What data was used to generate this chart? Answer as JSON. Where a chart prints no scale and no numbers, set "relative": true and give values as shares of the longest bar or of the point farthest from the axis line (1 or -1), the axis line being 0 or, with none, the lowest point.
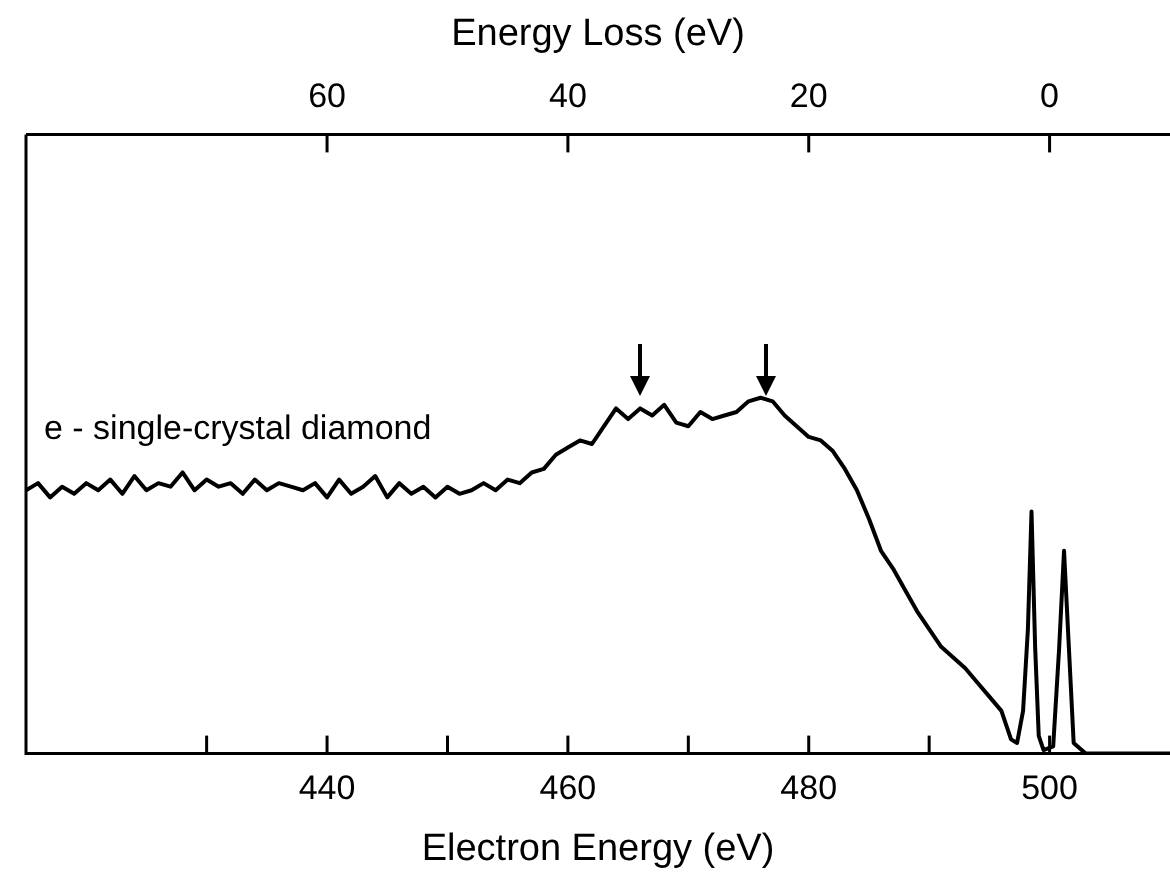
{
  "chart_data": {
    "type": "line",
    "relative": true,
    "xlabel": "Electron Energy (eV)",
    "x2label": "Energy Loss (eV)",
    "xlim": [
      415,
      510
    ],
    "xticks": [
      {
        "value": 430,
        "label": null
      },
      440,
      {
        "value": 450,
        "label": null
      },
      460,
      {
        "value": 470,
        "label": null
      },
      480,
      {
        "value": 490,
        "label": null
      },
      500
    ],
    "x2lim": [
      85,
      -10
    ],
    "x2ticks": [
      60,
      40,
      20,
      0
    ],
    "tick_labels": "x",
    "grid": false,
    "legend": false,
    "marker": "none",
    "line_style": "solid",
    "series": [
      {
        "name": "e - single-crystal diamond",
        "color": "#000000",
        "x": [
          415,
          416,
          417,
          418,
          419,
          420,
          421,
          422,
          423,
          424,
          425,
          426,
          427,
          428,
          429,
          430,
          431,
          432,
          433,
          434,
          435,
          436,
          437,
          438,
          439,
          440,
          441,
          442,
          443,
          444,
          445,
          446,
          447,
          448,
          449,
          450,
          451,
          452,
          453,
          454,
          455,
          456,
          457,
          458,
          459,
          460,
          461,
          462,
          463,
          464,
          465,
          466,
          467,
          468,
          469,
          470,
          471,
          472,
          473,
          474,
          475,
          476,
          477,
          478,
          479,
          480,
          481,
          482,
          483,
          484,
          485,
          486,
          487,
          488,
          489,
          490,
          491,
          492,
          493,
          494,
          495,
          496,
          496.8,
          497.3,
          497.8,
          498.2,
          498.5,
          498.8,
          499.1,
          499.5,
          500.3,
          500.8,
          501.2,
          501.6,
          502,
          503,
          510
        ],
        "values": [
          0.74,
          0.76,
          0.72,
          0.75,
          0.73,
          0.76,
          0.74,
          0.77,
          0.73,
          0.78,
          0.74,
          0.76,
          0.75,
          0.79,
          0.74,
          0.77,
          0.75,
          0.76,
          0.73,
          0.77,
          0.74,
          0.76,
          0.75,
          0.74,
          0.76,
          0.72,
          0.77,
          0.73,
          0.75,
          0.78,
          0.72,
          0.76,
          0.73,
          0.75,
          0.72,
          0.75,
          0.73,
          0.74,
          0.76,
          0.74,
          0.77,
          0.76,
          0.79,
          0.8,
          0.84,
          0.86,
          0.88,
          0.87,
          0.92,
          0.97,
          0.94,
          0.97,
          0.95,
          0.98,
          0.93,
          0.92,
          0.96,
          0.94,
          0.95,
          0.96,
          0.99,
          1.0,
          0.99,
          0.95,
          0.92,
          0.89,
          0.88,
          0.85,
          0.8,
          0.74,
          0.66,
          0.57,
          0.52,
          0.46,
          0.4,
          0.35,
          0.3,
          0.27,
          0.24,
          0.2,
          0.16,
          0.12,
          0.04,
          0.03,
          0.12,
          0.35,
          0.68,
          0.3,
          0.05,
          0.01,
          0.02,
          0.3,
          0.57,
          0.3,
          0.03,
          0,
          0
        ]
      }
    ]
  }
}
